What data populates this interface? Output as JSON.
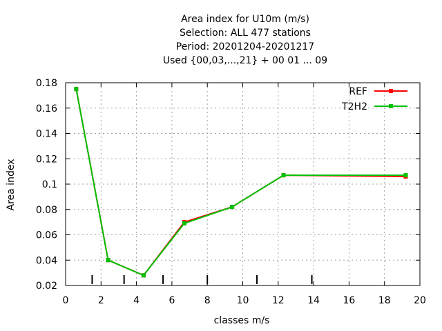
{
  "chart_data": {
    "type": "line",
    "title": [
      "Area index  for U10m (m/s)",
      "Selection: ALL    477 stations",
      "Period: 20201204-20201217",
      "Used {00,03,...,21} + 00 01 ... 09"
    ],
    "xlabel": "classes m/s",
    "ylabel": "Area index",
    "xlim": [
      0,
      20
    ],
    "ylim": [
      0.02,
      0.18
    ],
    "xticks": [
      0,
      2,
      4,
      6,
      8,
      10,
      12,
      14,
      16,
      18,
      20
    ],
    "yticks": [
      0.02,
      0.04,
      0.06,
      0.08,
      0.1,
      0.12,
      0.14,
      0.16,
      0.18
    ],
    "xtick_labels": [
      "0",
      "2",
      "4",
      "6",
      "8",
      "10",
      "12",
      "14",
      "16",
      "18",
      "20"
    ],
    "ytick_labels": [
      "0.02",
      "0.04",
      "0.06",
      "0.08",
      "0.1",
      "0.12",
      "0.14",
      "0.16",
      "0.18"
    ],
    "grid": true,
    "legend_position": "top-right",
    "class_boundaries": [
      1.5,
      3.3,
      5.5,
      8.0,
      10.8,
      13.9
    ],
    "series": [
      {
        "name": "REF",
        "color": "#ff0000",
        "x": [
          0.6,
          2.4,
          4.4,
          6.7,
          9.4,
          12.3,
          19.2
        ],
        "y": [
          0.175,
          0.04,
          0.028,
          0.07,
          0.082,
          0.107,
          0.106
        ]
      },
      {
        "name": "T2H2",
        "color": "#00c000",
        "x": [
          0.6,
          2.4,
          4.4,
          6.7,
          9.4,
          12.3,
          19.2
        ],
        "y": [
          0.175,
          0.04,
          0.028,
          0.069,
          0.082,
          0.107,
          0.107
        ]
      }
    ]
  }
}
